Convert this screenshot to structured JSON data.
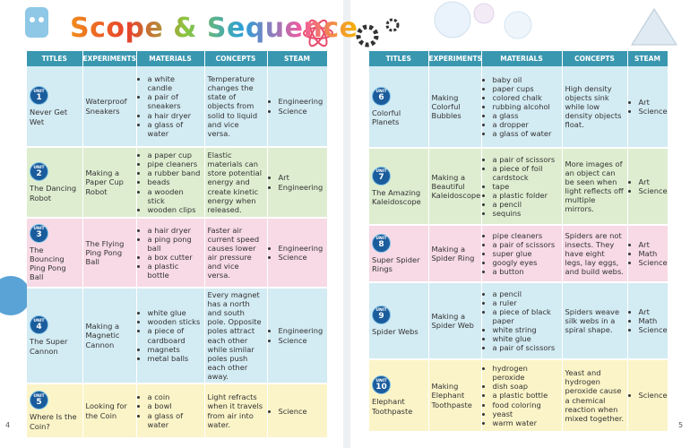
{
  "header": {
    "title": "Scope & Sequence"
  },
  "pages": [
    {
      "number": "4",
      "columns": [
        "TITLES",
        "EXPERIMENTS",
        "MATERIALS",
        "CONCEPTS",
        "STEAM"
      ],
      "rows": [
        {
          "unit": "UNIT",
          "number": "1",
          "title": "Never Get Wet",
          "experiment": "Waterproof Sneakers",
          "materials": [
            "a white candle",
            "a pair of sneakers",
            "a hair dryer",
            "a glass of water"
          ],
          "concept": "Temperature changes the state of objects from solid to liquid and vice versa.",
          "steam": [
            "Engineering",
            "Science"
          ]
        },
        {
          "unit": "UNIT",
          "number": "2",
          "title": "The Dancing Robot",
          "experiment": "Making a Paper Cup Robot",
          "materials": [
            "a paper cup",
            "pipe cleaners",
            "a rubber band",
            "beads",
            "a wooden stick",
            "wooden clips"
          ],
          "concept": "Elastic materials can store potential energy and create kinetic energy when released.",
          "steam": [
            "Art",
            "Engineering"
          ]
        },
        {
          "unit": "UNIT",
          "number": "3",
          "title": "The Bouncing Ping Pong Ball",
          "experiment": "The Flying Ping Pong Ball",
          "materials": [
            "a hair dryer",
            "a ping pong ball",
            "a box cutter",
            "a plastic bottle"
          ],
          "concept": "Faster air current speed causes lower air pressure and vice versa.",
          "steam": [
            "Engineering",
            "Science"
          ]
        },
        {
          "unit": "UNIT",
          "number": "4",
          "title": "The Super Cannon",
          "experiment": "Making a Magnetic Cannon",
          "materials": [
            "white glue",
            "wooden sticks",
            "a piece of cardboard",
            "magnets",
            "metal balls"
          ],
          "concept": "Every magnet has a north and south pole. Opposite poles attract each other while similar poles push each other away.",
          "steam": [
            "Engineering",
            "Science"
          ]
        },
        {
          "unit": "UNIT",
          "number": "5",
          "title": "Where Is the Coin?",
          "experiment": "Looking for the Coin",
          "materials": [
            "a coin",
            "a bowl",
            "a glass of water"
          ],
          "concept": "Light refracts when it travels from air into water.",
          "steam": [
            "Science"
          ]
        }
      ]
    },
    {
      "number": "5",
      "columns": [
        "TITLES",
        "EXPERIMENTS",
        "MATERIALS",
        "CONCEPTS",
        "STEAM"
      ],
      "rows": [
        {
          "unit": "UNIT",
          "number": "6",
          "title": "Colorful Planets",
          "experiment": "Making Colorful Bubbles",
          "materials": [
            "baby oil",
            "paper cups",
            "colored chalk",
            "rubbing alcohol",
            "a glass",
            "a dropper",
            "a glass of water"
          ],
          "concept": "High density objects sink while low density objects float.",
          "steam": [
            "Art",
            "Science"
          ]
        },
        {
          "unit": "UNIT",
          "number": "7",
          "title": "The Amazing Kaleidoscope",
          "experiment": "Making a Beautiful Kaleidoscope",
          "materials": [
            "a pair of scissors",
            "a piece of foil cardstock",
            "tape",
            "a plastic folder",
            "a pencil",
            "sequins"
          ],
          "concept": "More images of an object can be seen when light reflects off multiple mirrors.",
          "steam": [
            "Art",
            "Science"
          ]
        },
        {
          "unit": "UNIT",
          "number": "8",
          "title": "Super Spider Rings",
          "experiment": "Making a Spider Ring",
          "materials": [
            "pipe cleaners",
            "a pair of scissors",
            "super glue",
            "googly eyes",
            "a button"
          ],
          "concept": "Spiders are not insects. They have eight legs, lay eggs, and build webs.",
          "steam": [
            "Art",
            "Math",
            "Science"
          ]
        },
        {
          "unit": "UNIT",
          "number": "9",
          "title": "Spider Webs",
          "experiment": "Making a Spider Web",
          "materials": [
            "a pencil",
            "a ruler",
            "a piece of black paper",
            "white string",
            "white glue",
            "a pair of scissors"
          ],
          "concept": "Spiders weave silk webs in a spiral shape.",
          "steam": [
            "Art",
            "Math",
            "Science"
          ]
        },
        {
          "unit": "UNIT",
          "number": "10",
          "title": "Elephant Toothpaste",
          "experiment": "Making Elephant Toothpaste",
          "materials": [
            "hydrogen peroxide",
            "dish soap",
            "a plastic bottle",
            "food coloring",
            "yeast",
            "warm water"
          ],
          "concept": "Yeast and hydrogen peroxide cause a chemical reaction when mixed together.",
          "steam": [
            "Science"
          ]
        }
      ]
    }
  ]
}
